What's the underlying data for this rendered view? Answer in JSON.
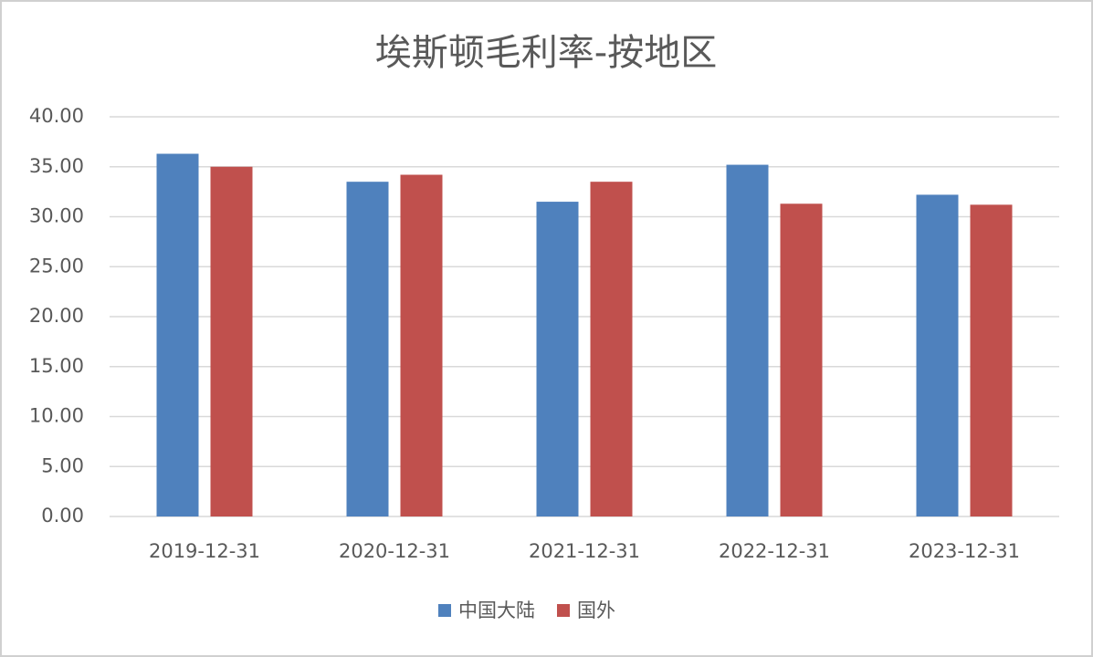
{
  "chart_data": {
    "type": "bar",
    "title": "埃斯顿毛利率-按地区",
    "categories": [
      "2019-12-31",
      "2020-12-31",
      "2021-12-31",
      "2022-12-31",
      "2023-12-31"
    ],
    "series": [
      {
        "name": "中国大陆",
        "color": "#4f81bd",
        "values": [
          36.3,
          33.5,
          31.5,
          35.2,
          32.2
        ]
      },
      {
        "name": "国外",
        "color": "#c0504d",
        "values": [
          35.0,
          34.2,
          33.5,
          31.3,
          31.2
        ]
      }
    ],
    "ylim": [
      0,
      40
    ],
    "yticks": [
      {
        "value": 0,
        "label": "0.00"
      },
      {
        "value": 5,
        "label": "5.00"
      },
      {
        "value": 10,
        "label": "10.00"
      },
      {
        "value": 15,
        "label": "15.00"
      },
      {
        "value": 20,
        "label": "20.00"
      },
      {
        "value": 25,
        "label": "25.00"
      },
      {
        "value": 30,
        "label": "30.00"
      },
      {
        "value": 35,
        "label": "35.00"
      },
      {
        "value": 40,
        "label": "40.00"
      }
    ],
    "grid": true,
    "legend": "bottom"
  }
}
